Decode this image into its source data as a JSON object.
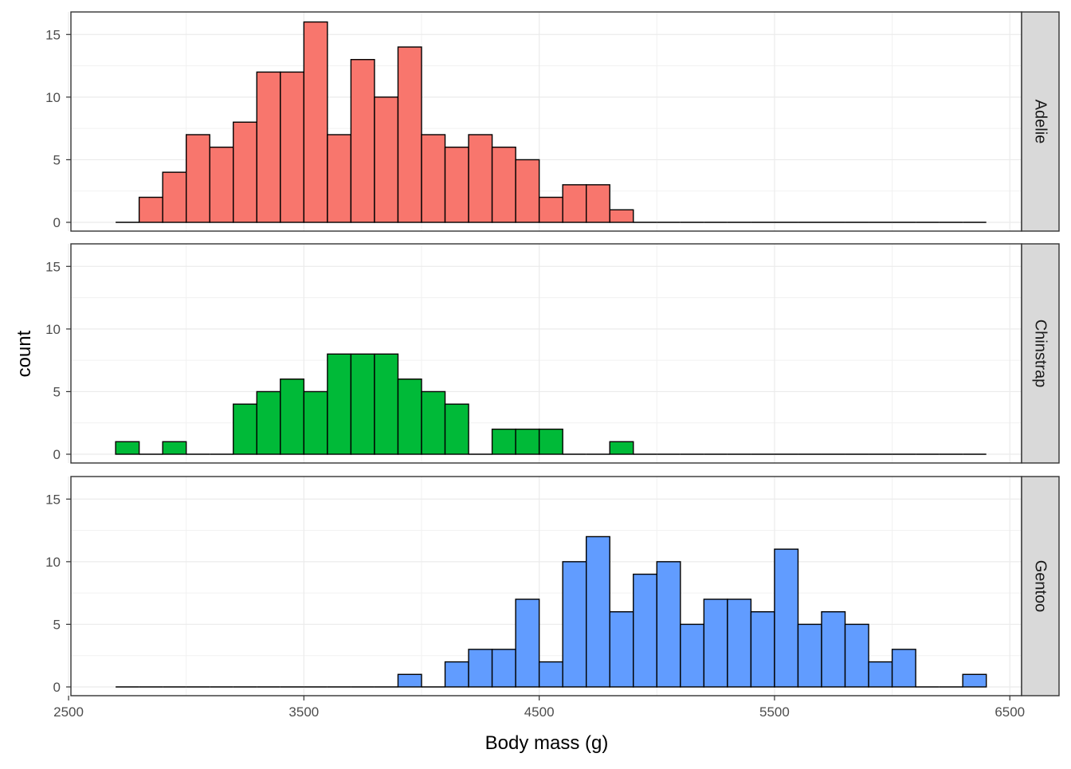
{
  "chart_data": {
    "type": "bar",
    "chart_kind": "faceted histogram",
    "xlabel": "Body mass (g)",
    "ylabel": "count",
    "xlim": [
      2510,
      6550
    ],
    "ylim": [
      -0.7,
      16.8
    ],
    "x_ticks": [
      2500,
      3500,
      4500,
      5500,
      6500
    ],
    "x_tick_labels": [
      "2500",
      "3500",
      "4500",
      "5500",
      "6500"
    ],
    "y_ticks": [
      0,
      5,
      10,
      15
    ],
    "y_tick_labels": [
      "0",
      "5",
      "10",
      "15"
    ],
    "grid": true,
    "bin_edges": [
      2700,
      2800,
      2900,
      3000,
      3100,
      3200,
      3300,
      3400,
      3500,
      3600,
      3700,
      3800,
      3900,
      4000,
      4100,
      4200,
      4300,
      4400,
      4500,
      4600,
      4700,
      4800,
      4900,
      5000,
      5100,
      5200,
      5300,
      5400,
      5500,
      5600,
      5700,
      5800,
      5900,
      6000,
      6100,
      6200,
      6300,
      6400
    ],
    "panels": [
      {
        "name": "Adelie",
        "color": "#F8766D",
        "counts": [
          0,
          2,
          4,
          7,
          6,
          8,
          12,
          12,
          16,
          7,
          13,
          10,
          14,
          7,
          6,
          7,
          6,
          5,
          2,
          3,
          3,
          1,
          0,
          0,
          0,
          0,
          0,
          0,
          0,
          0,
          0,
          0,
          0,
          0,
          0,
          0,
          0
        ]
      },
      {
        "name": "Chinstrap",
        "color": "#00BA38",
        "counts": [
          1,
          0,
          1,
          0,
          0,
          4,
          5,
          6,
          5,
          8,
          8,
          8,
          6,
          5,
          4,
          0,
          2,
          2,
          2,
          0,
          0,
          1,
          0,
          0,
          0,
          0,
          0,
          0,
          0,
          0,
          0,
          0,
          0,
          0,
          0,
          0,
          0
        ]
      },
      {
        "name": "Gentoo",
        "color": "#619CFF",
        "counts": [
          0,
          0,
          0,
          0,
          0,
          0,
          0,
          0,
          0,
          0,
          0,
          0,
          1,
          0,
          2,
          3,
          3,
          7,
          2,
          10,
          12,
          6,
          9,
          10,
          5,
          7,
          7,
          6,
          11,
          5,
          6,
          5,
          2,
          3,
          0,
          0,
          1
        ]
      }
    ]
  }
}
